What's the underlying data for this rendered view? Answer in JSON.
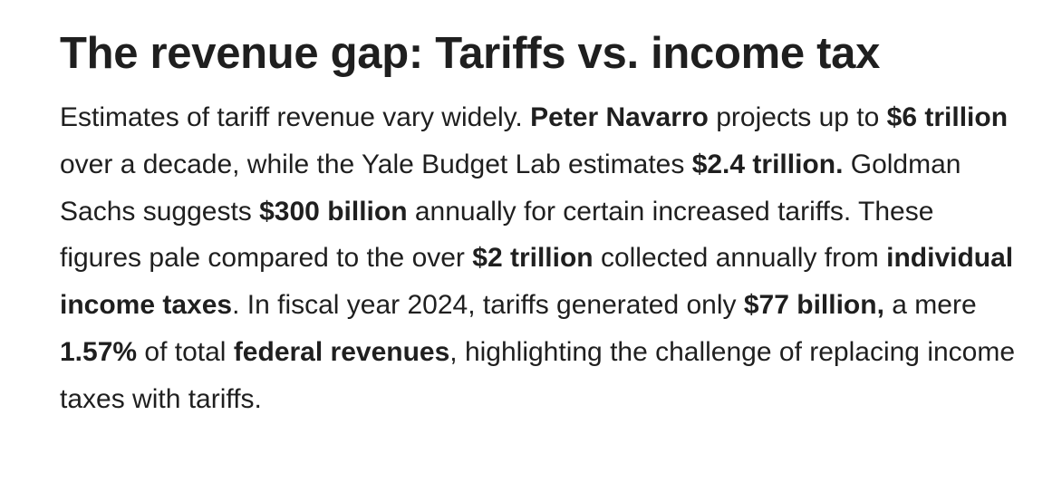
{
  "heading": "The revenue gap: Tariffs vs. income tax",
  "paragraph": [
    {
      "text": "Estimates of tariff revenue vary widely. ",
      "bold": false
    },
    {
      "text": "Peter Navarro",
      "bold": true
    },
    {
      "text": " projects up to ",
      "bold": false
    },
    {
      "text": "$6 trillion",
      "bold": true
    },
    {
      "text": " over a decade, while the Yale Budget Lab estimates ",
      "bold": false
    },
    {
      "text": "$2.4 trillion.",
      "bold": true
    },
    {
      "text": " Goldman Sachs suggests ",
      "bold": false
    },
    {
      "text": "$300 billion",
      "bold": true
    },
    {
      "text": " annually for certain increased tariffs. These figures pale compared to the over ",
      "bold": false
    },
    {
      "text": "$2 trillion",
      "bold": true
    },
    {
      "text": " collected annually from ",
      "bold": false
    },
    {
      "text": "individual income taxes",
      "bold": true
    },
    {
      "text": ". In fiscal year 2024, tariffs generated only ",
      "bold": false
    },
    {
      "text": "$77 billion,",
      "bold": true
    },
    {
      "text": " a mere ",
      "bold": false
    },
    {
      "text": "1.57%",
      "bold": true
    },
    {
      "text": " of total ",
      "bold": false
    },
    {
      "text": "federal revenues",
      "bold": true
    },
    {
      "text": ", highlighting the challenge of replacing income taxes with tariffs.",
      "bold": false
    }
  ]
}
